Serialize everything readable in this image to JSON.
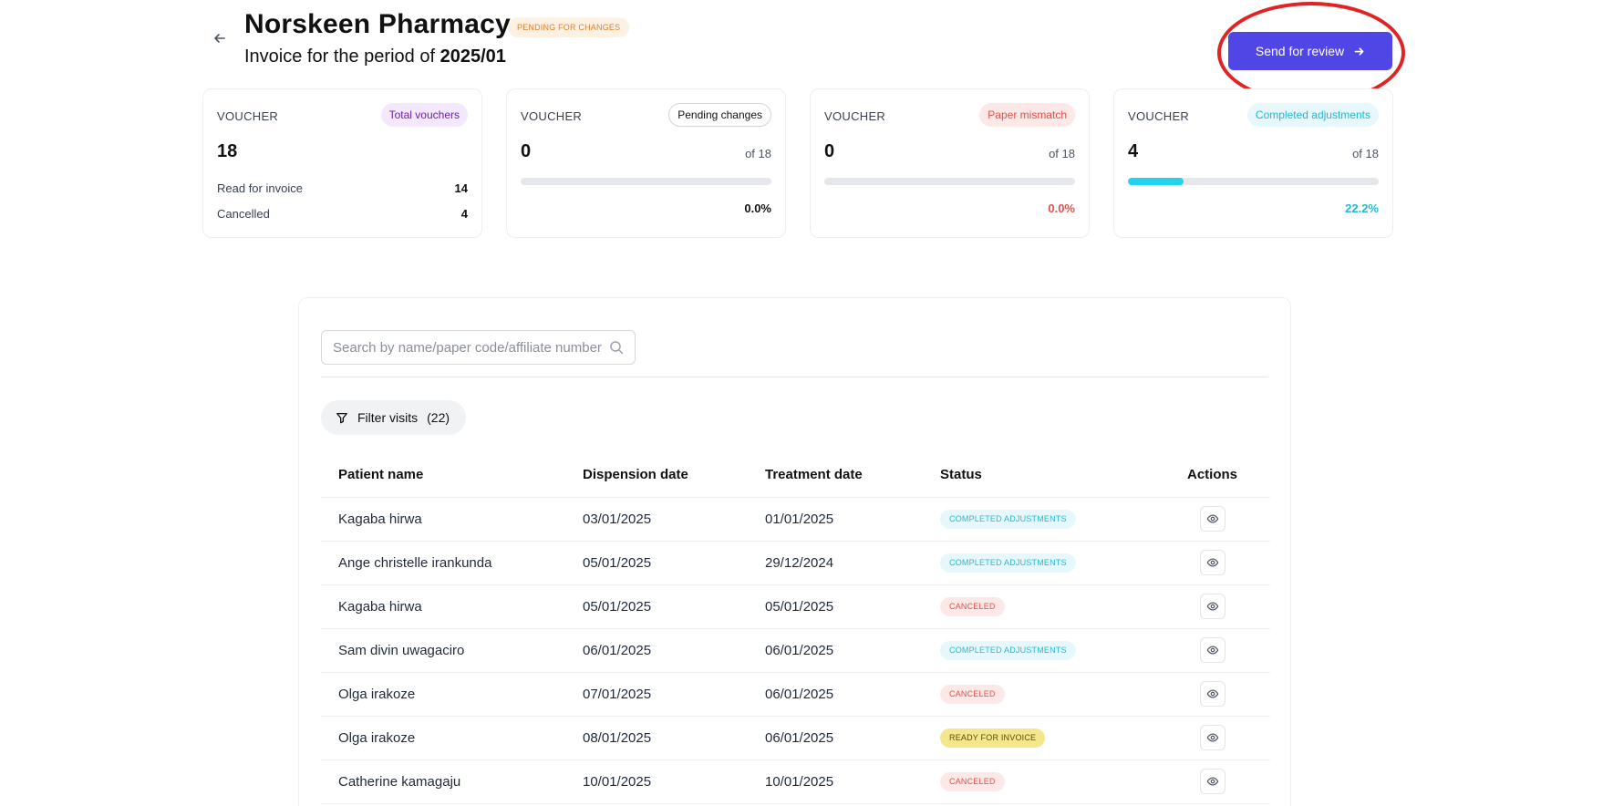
{
  "header": {
    "back_icon": "arrow-left-icon",
    "title": "Norskeen Pharmacy",
    "status_badge": "PENDING FOR CHANGES",
    "subtitle_prefix": "Invoice for the period of ",
    "period": "2025/01",
    "send_button_label": "Send for review",
    "send_button_icon": "arrow-right-icon"
  },
  "cards": [
    {
      "label": "VOUCHER",
      "chip": "Total vouchers",
      "value": "18",
      "rows": [
        {
          "label": "Read for invoice",
          "value": "14"
        },
        {
          "label": "Cancelled",
          "value": "4"
        }
      ]
    },
    {
      "label": "VOUCHER",
      "chip": "Pending changes",
      "value": "0",
      "of": "of 18",
      "progress": 0.0,
      "percent": "0.0%"
    },
    {
      "label": "VOUCHER",
      "chip": "Paper mismatch",
      "value": "0",
      "of": "of 18",
      "progress": 0.0,
      "percent": "0.0%"
    },
    {
      "label": "VOUCHER",
      "chip": "Completed adjustments",
      "value": "4",
      "of": "of 18",
      "progress": 0.222,
      "percent": "22.2%"
    }
  ],
  "search": {
    "placeholder": "Search by name/paper code/affiliate number",
    "icon": "search-icon"
  },
  "filter": {
    "label": "Filter visits",
    "count": "(22)",
    "icon": "funnel-icon"
  },
  "table": {
    "headers": [
      "Patient name",
      "Dispension date",
      "Treatment date",
      "Status",
      "Actions"
    ],
    "rows": [
      {
        "name": "Kagaba hirwa",
        "dispension": "03/01/2025",
        "treatment": "01/01/2025",
        "status": "COMPLETED ADJUSTMENTS"
      },
      {
        "name": "Ange christelle irankunda",
        "dispension": "05/01/2025",
        "treatment": "29/12/2024",
        "status": "COMPLETED ADJUSTMENTS"
      },
      {
        "name": "Kagaba hirwa",
        "dispension": "05/01/2025",
        "treatment": "05/01/2025",
        "status": "CANCELED"
      },
      {
        "name": "Sam divin uwagaciro",
        "dispension": "06/01/2025",
        "treatment": "06/01/2025",
        "status": "COMPLETED ADJUSTMENTS"
      },
      {
        "name": "Olga irakoze",
        "dispension": "07/01/2025",
        "treatment": "06/01/2025",
        "status": "CANCELED"
      },
      {
        "name": "Olga irakoze",
        "dispension": "08/01/2025",
        "treatment": "06/01/2025",
        "status": "READY FOR INVOICE"
      },
      {
        "name": "Catherine kamagaju",
        "dispension": "10/01/2025",
        "treatment": "10/01/2025",
        "status": "CANCELED"
      }
    ],
    "action_icon": "eye-icon"
  },
  "colors": {
    "primary": "#4f46e5",
    "pending_bg": "#fdf1e4",
    "pending_text": "#d9822b",
    "completed_bg": "#e6f8fc",
    "completed_text": "#22b8d4",
    "canceled_bg": "#fde8e8",
    "canceled_text": "#e0524a",
    "ready_bg": "#f4e68a",
    "ready_text": "#5c4d0a",
    "total_chip_bg": "#f3e8fd",
    "total_chip_text": "#6b21a8",
    "mismatch_chip_bg": "#fde8e8",
    "mismatch_chip_text": "#e0524a",
    "annotation": "#e02424"
  }
}
